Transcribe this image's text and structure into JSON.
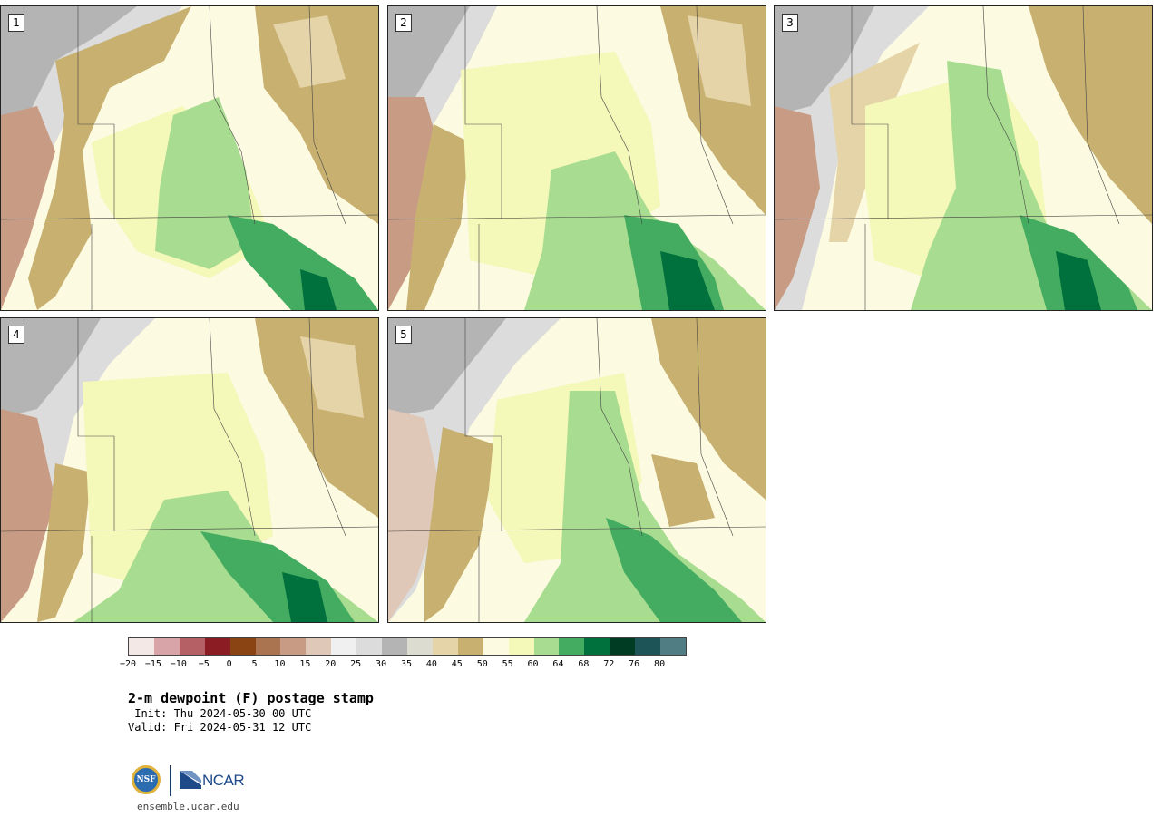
{
  "panels": [
    {
      "label": "1"
    },
    {
      "label": "2"
    },
    {
      "label": "3"
    },
    {
      "label": "4"
    },
    {
      "label": "5"
    }
  ],
  "colorbar": {
    "colors": [
      "#f4e8e6",
      "#d8a4a8",
      "#b46064",
      "#8c1c24",
      "#8a4414",
      "#aa7450",
      "#c89c84",
      "#e0c8b8",
      "#f0f0f0",
      "#dcdcdc",
      "#b4b4b4",
      "#dcdcd0",
      "#e4d4a8",
      "#c8b070",
      "#fcfae0",
      "#f4f8b8",
      "#a8dc90",
      "#44ac60",
      "#00703c",
      "#003c24",
      "#1c5458",
      "#507c84"
    ],
    "tick_labels": [
      "−20",
      "−15",
      "−10",
      "−5",
      "0",
      "5",
      "10",
      "15",
      "20",
      "25",
      "30",
      "35",
      "40",
      "45",
      "50",
      "55",
      "60",
      "64",
      "68",
      "72",
      "76",
      "80"
    ]
  },
  "title": "2-m dewpoint (F) postage stamp",
  "init": " Init: Thu 2024-05-30 00 UTC",
  "valid": "Valid: Fri 2024-05-31 12 UTC",
  "logos": {
    "nsf_text": "NSF",
    "ncar_text": "NCAR",
    "website": "ensemble.ucar.edu"
  }
}
